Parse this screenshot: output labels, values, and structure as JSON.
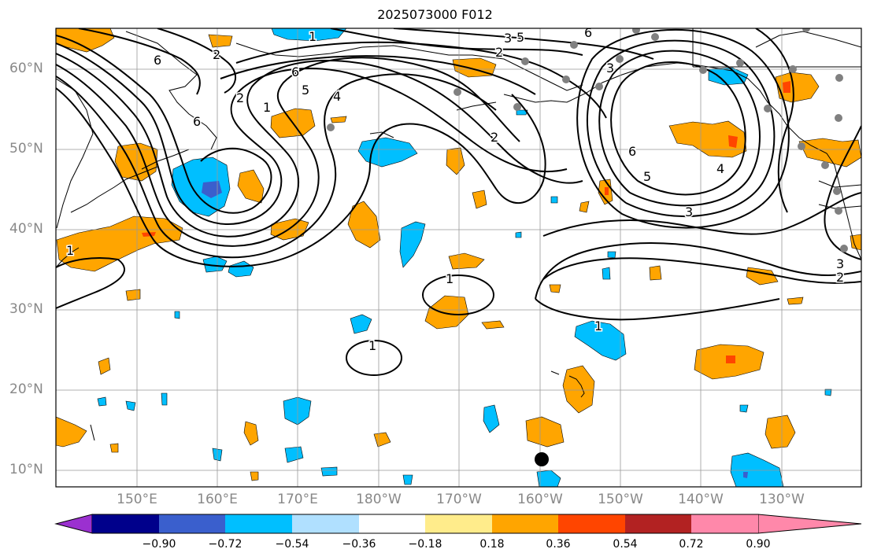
{
  "title": "2025073000 F012",
  "lat_labels": [
    "60°N",
    "50°N",
    "40°N",
    "30°N",
    "20°N",
    "10°N"
  ],
  "lon_labels": [
    "150°E",
    "160°E",
    "170°E",
    "180°W",
    "170°W",
    "160°W",
    "150°W",
    "140°W",
    "130°W"
  ],
  "contour_labels": [
    "1",
    "6",
    "6",
    "5",
    "4",
    "2",
    "6",
    "5",
    "3",
    "2",
    "6",
    "5",
    "4",
    "3",
    "1",
    "1",
    "1",
    "1",
    "3",
    "2",
    "1",
    "2",
    "3",
    "2",
    "6"
  ],
  "colorbar": {
    "ticks": [
      "−0.90",
      "−0.72",
      "−0.54",
      "−0.36",
      "−0.18",
      "0.18",
      "0.36",
      "0.54",
      "0.72",
      "0.90"
    ],
    "colors": [
      "#9b30d0",
      "#00008b",
      "#3a5fcd",
      "#00bfff",
      "#b0e0ff",
      "#ffffff",
      "#ffec8b",
      "#ffa500",
      "#ff4500",
      "#b22222",
      "#ff88aa"
    ]
  },
  "colors": {
    "positive": "#ffa500",
    "positive_strong": "#ff4500",
    "negative": "#00bfff",
    "negative_strong": "#3a5fcd",
    "contour": "#000000",
    "station": "#808080",
    "grid": "#999999"
  }
}
